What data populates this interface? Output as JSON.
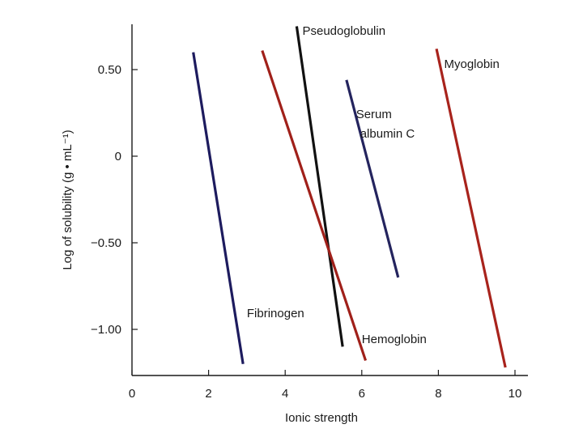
{
  "chart_data": {
    "type": "line",
    "title": "",
    "xlabel": "Ionic strength",
    "ylabel": "Log of solubility (g • mL⁻¹)",
    "xlim": [
      0,
      10
    ],
    "ylim": [
      -1.25,
      0.75
    ],
    "grid": false,
    "x_ticks": [
      0,
      2,
      4,
      6,
      8,
      10
    ],
    "x_tick_labels": [
      "0",
      "2",
      "4",
      "6",
      "8",
      "10"
    ],
    "y_ticks": [
      0.5,
      0,
      -0.5,
      -1.0
    ],
    "y_tick_labels": [
      "0.50",
      "0",
      "−0.50",
      "−1.00"
    ],
    "series": [
      {
        "name": "Fibrinogen",
        "label_lines": [
          "Fibrinogen"
        ],
        "color": "#1d1b5e",
        "x": [
          1.6,
          2.9
        ],
        "y": [
          0.6,
          -1.2
        ],
        "label_pos": [
          3.0,
          -0.93
        ]
      },
      {
        "name": "Pseudoglobulin",
        "label_lines": [
          "Pseudoglobulin"
        ],
        "color": "#111111",
        "x": [
          4.3,
          5.5
        ],
        "y": [
          0.75,
          -1.1
        ],
        "label_pos": [
          4.45,
          0.7
        ]
      },
      {
        "name": "Hemoglobin",
        "label_lines": [
          "Hemoglobin"
        ],
        "color": "#a0201a",
        "x": [
          3.4,
          6.1
        ],
        "y": [
          0.61,
          -1.18
        ],
        "label_pos": [
          6.0,
          -1.08
        ]
      },
      {
        "name": "Serum albumin C",
        "label_lines": [
          "Serum",
          "albumin C"
        ],
        "color": "#24245e",
        "x": [
          5.6,
          6.95
        ],
        "y": [
          0.44,
          -0.7
        ],
        "label_pos": [
          5.85,
          0.22
        ]
      },
      {
        "name": "Myoglobin",
        "label_lines": [
          "Myoglobin"
        ],
        "color": "#a8231c",
        "x": [
          7.95,
          9.75
        ],
        "y": [
          0.62,
          -1.22
        ],
        "label_pos": [
          8.15,
          0.51
        ]
      }
    ]
  }
}
